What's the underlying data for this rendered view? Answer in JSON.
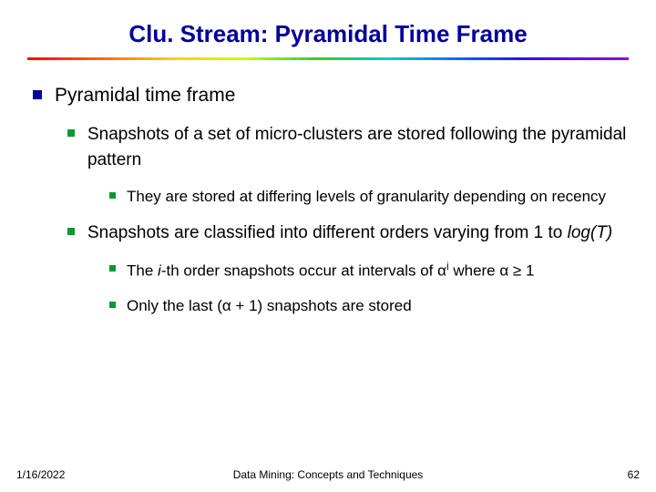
{
  "title": "Clu. Stream: Pyramidal Time Frame",
  "bullets": {
    "l1": "Pyramidal time frame",
    "l2a": "Snapshots of a set of micro-clusters are stored following the pyramidal pattern",
    "l3a": "They are stored at differing levels of granularity depending on recency",
    "l2b_pre": "Snapshots are classified into different orders varying from 1 to ",
    "l2b_em": "log(T)",
    "l3b_pre": "The ",
    "l3b_em": "i",
    "l3b_mid": "-th order snapshots occur at intervals of α",
    "l3b_sup": "i",
    "l3b_post": " where α ≥ 1",
    "l3c": "Only the last (α + 1) snapshots are stored"
  },
  "footer": {
    "date": "1/16/2022",
    "center": "Data Mining: Concepts and Techniques",
    "page": "62"
  },
  "colors": {
    "title_color": "#000099",
    "bullet_l1_color": "#000099",
    "bullet_sub_color": "#009933",
    "text_color": "#000000",
    "background": "#ffffff"
  },
  "fonts": {
    "title_size_pt": 20,
    "l1_size_pt": 16,
    "l2_size_pt": 14,
    "l3_size_pt": 13,
    "footer_size_pt": 9,
    "family": "Verdana"
  }
}
